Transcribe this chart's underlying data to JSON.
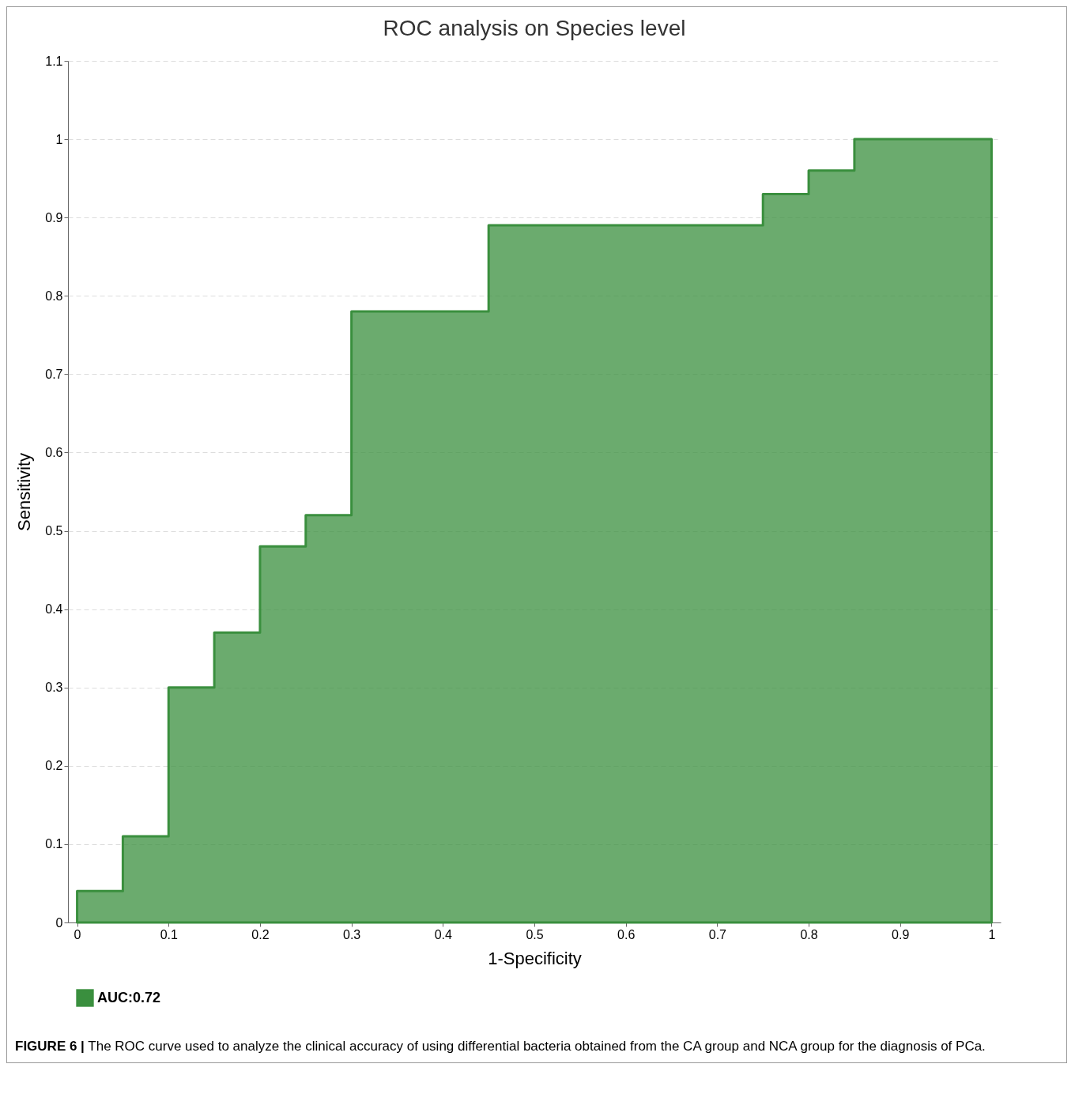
{
  "chart_data": {
    "type": "area",
    "title": "ROC analysis on Species level",
    "xlabel": "1-Specificity",
    "ylabel": "Sensitivity",
    "x": [
      0,
      0.05,
      0.1,
      0.15,
      0.2,
      0.25,
      0.3,
      0.45,
      0.75,
      0.8,
      0.85,
      1
    ],
    "series": [
      {
        "name": "AUC:0.72",
        "color": "#3a8f3e",
        "values": [
          0.04,
          0.11,
          0.3,
          0.37,
          0.48,
          0.52,
          0.78,
          0.89,
          0.93,
          0.96,
          1,
          1
        ]
      }
    ],
    "xlim": [
      -0.01,
      1.01
    ],
    "ylim": [
      0,
      1.1
    ],
    "xticks": [
      0,
      0.1,
      0.2,
      0.3,
      0.4,
      0.5,
      0.6,
      0.7,
      0.8,
      0.9,
      1
    ],
    "yticks": [
      0,
      0.1,
      0.2,
      0.3,
      0.4,
      0.5,
      0.6,
      0.7,
      0.8,
      0.9,
      1,
      1.1
    ],
    "grid": "y",
    "legend": "bottom",
    "line_style": "solid",
    "annotations": [
      "FIGURE 6 | The ROC curve used to analyze the clinical accuracy of using differential bacteria obtained from the CA group and NCA group for the diagnosis of PCa."
    ]
  }
}
